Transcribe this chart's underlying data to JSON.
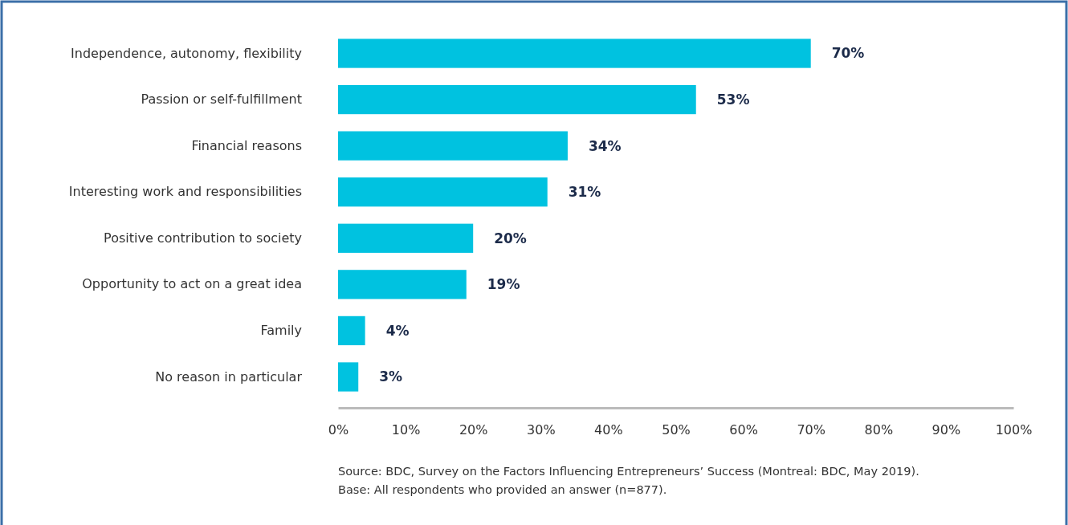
{
  "chart_data": {
    "type": "bar",
    "orientation": "horizontal",
    "categories": [
      "Independence, autonomy, flexibility",
      "Passion or self-fulfillment",
      "Financial reasons",
      "Interesting work and responsibilities",
      "Positive contribution to society",
      "Opportunity to act on a great idea",
      "Family",
      "No reason in particular"
    ],
    "values": [
      70,
      53,
      34,
      31,
      20,
      19,
      4,
      3
    ],
    "value_labels": [
      "70%",
      "53%",
      "34%",
      "31%",
      "20%",
      "19%",
      "4%",
      "3%"
    ],
    "color": "#00c2e0",
    "xlim": [
      0,
      100
    ],
    "xticks": [
      {
        "value": 0,
        "label": "0%"
      },
      {
        "value": 10,
        "label": "10%"
      },
      {
        "value": 20,
        "label": "20%"
      },
      {
        "value": 30,
        "label": "30%"
      },
      {
        "value": 40,
        "label": "40%"
      },
      {
        "value": 50,
        "label": "50%"
      },
      {
        "value": 60,
        "label": "60%"
      },
      {
        "value": 70,
        "label": "70%"
      },
      {
        "value": 80,
        "label": "80%"
      },
      {
        "value": 90,
        "label": "90%"
      },
      {
        "value": 100,
        "label": "100%"
      }
    ],
    "grid": false,
    "annotations": [
      "Source: BDC, Survey on the Factors Influencing Entrepreneurs’ Success (Montreal: BDC, May 2019).",
      "Base: All respondents who provided an answer (n=877)."
    ]
  }
}
